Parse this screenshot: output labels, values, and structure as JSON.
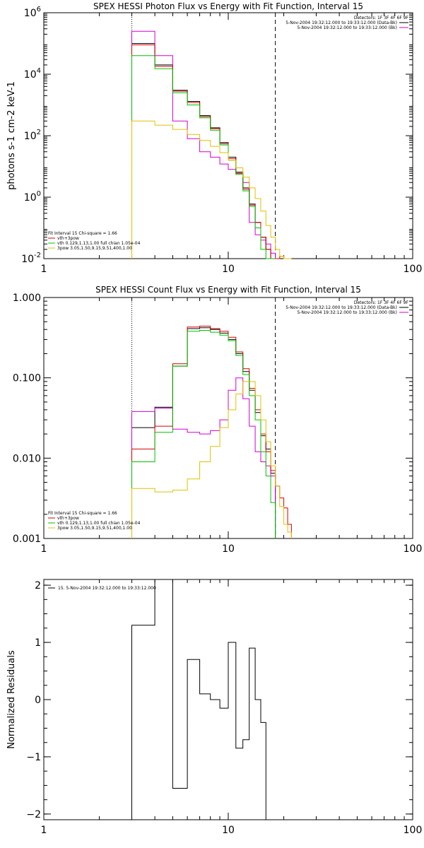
{
  "colors": {
    "black": "#000000",
    "red": "#d40000",
    "magenta": "#d000d0",
    "green": "#00c000",
    "gold": "#e0c000",
    "background": "#ffffff"
  },
  "chart_data": [
    {
      "type": "line",
      "title": "SPEX HESSI Photon Flux vs Energy with Fit Function, Interval 15",
      "xlabel": "",
      "ylabel": "photons s-1 cm-2 keV-1",
      "xscale": "log",
      "yscale": "log",
      "xlim": [
        1,
        100
      ],
      "ylim": [
        0.01,
        1000000
      ],
      "xticks": [
        "1",
        "10",
        "100"
      ],
      "yticks": [
        {
          "value": 0.01,
          "base": "10",
          "exp": "-2"
        },
        {
          "value": 1,
          "base": "10",
          "exp": "0"
        },
        {
          "value": 100,
          "base": "10",
          "exp": "2"
        },
        {
          "value": 10000,
          "base": "10",
          "exp": "4"
        },
        {
          "value": 1000000,
          "base": "10",
          "exp": "6"
        }
      ],
      "vlines": [
        {
          "x": 3,
          "style": "dotted"
        },
        {
          "x": 18,
          "style": "dashed"
        }
      ],
      "legend_top": [
        "Detectors: 1F 3F 4F 6F 9F",
        "5-Nov-2004 19:32:12.000 to 19:33:12.000 (Data-Bk)",
        "5-Nov-2004 19:32:12.000 to 19:33:12.000 (Bk)"
      ],
      "legend_bottom": [
        "Fit Interval 15   Chi-square = 1.66",
        "vth+3pow",
        "vth 0.129,1.13,1.00  full chian 1.05e-04",
        "3pow 3.05,1.50,9.15,9.51,400,1.00"
      ],
      "series": [
        {
          "name": "5-Nov-2004 19:32:12.000 to 19:33:12.000 (Data-Bk)",
          "color": "black",
          "edges": [
            3,
            4,
            5,
            6,
            7,
            8,
            9,
            10,
            11,
            12,
            13,
            14,
            15,
            16,
            17,
            18
          ],
          "values": [
            100000,
            20000,
            3000,
            1300,
            450,
            180,
            60,
            20,
            6.5,
            2.0,
            0.6,
            0.15,
            0.05,
            0.02,
            0.009
          ]
        },
        {
          "name": "5-Nov-2004 19:32:12.000 to 19:33:12.000 (Bk)",
          "color": "magenta",
          "edges": [
            3,
            4,
            5,
            6,
            7,
            8,
            9,
            10,
            11,
            12,
            13,
            14,
            15,
            16,
            17,
            18
          ],
          "values": [
            250000,
            40000,
            300,
            80,
            30,
            20,
            12,
            8,
            6,
            3,
            0.15,
            0.06,
            0.04,
            0.03,
            0.015
          ]
        },
        {
          "name": "vth+3pow",
          "color": "red",
          "edges": [
            3,
            4,
            5,
            6,
            7,
            8,
            9,
            10,
            11,
            12,
            13,
            14,
            15,
            16,
            17,
            18,
            19,
            20,
            21,
            22
          ],
          "values": [
            90000,
            18000,
            2800,
            1200,
            420,
            170,
            55,
            18,
            6,
            1.8,
            0.55,
            0.15,
            0.05,
            0.02,
            0.01,
            0.009,
            0.012,
            0.01,
            0.01
          ]
        },
        {
          "name": "vth 0.129,1.13,1.00  full chian 1.05e-04",
          "color": "green",
          "edges": [
            3,
            4,
            5,
            6,
            7,
            8,
            9,
            10,
            11,
            12,
            13,
            14,
            15,
            16,
            17,
            18
          ],
          "values": [
            40000,
            15000,
            2500,
            1000,
            380,
            150,
            50,
            16,
            5.5,
            1.6,
            0.5,
            0.1,
            0.02,
            0.005,
            0.005
          ]
        },
        {
          "name": "3pow 3.05,1.50,9.15,9.51,400,1.00",
          "color": "gold",
          "edges": [
            3,
            4,
            5,
            6,
            7,
            8,
            9,
            10,
            11,
            12,
            13,
            14,
            15,
            16,
            17,
            18,
            19,
            20,
            21,
            22
          ],
          "values": [
            300,
            220,
            160,
            110,
            70,
            45,
            28,
            16,
            9,
            4.5,
            2,
            0.9,
            0.35,
            0.12,
            0.05,
            0.02,
            0.012,
            0.01,
            0.01
          ]
        }
      ]
    },
    {
      "type": "line",
      "title": "SPEX HESSI Count Flux vs Energy with Fit Function, Interval 15",
      "xlabel": "",
      "ylabel": "",
      "xscale": "log",
      "yscale": "log",
      "xlim": [
        1,
        100
      ],
      "ylim": [
        0.001,
        1
      ],
      "xticks": [
        "1",
        "10",
        "100"
      ],
      "yticks": [
        {
          "value": 0.001,
          "label": "0.001"
        },
        {
          "value": 0.01,
          "label": "0.010"
        },
        {
          "value": 0.1,
          "label": "0.100"
        },
        {
          "value": 1,
          "label": "1.000"
        }
      ],
      "vlines": [
        {
          "x": 3,
          "style": "dotted"
        },
        {
          "x": 18,
          "style": "dashed"
        }
      ],
      "legend_top": [
        "Detectors: 1F 3F 4F 6F 9F",
        "5-Nov-2004 19:32:12.000 to 19:33:12.000 (Data-Bk)",
        "5-Nov-2004 19:32:12.000 to 19:33:12.000 (Bk)"
      ],
      "legend_bottom": [
        "Fit Interval 15   Chi-square = 1.66",
        "vth+3pow",
        "vth 0.129,1.13,1.00  full chian 1.05e-04",
        "3pow 3.05,1.50,9.15,9.51,400,1.00"
      ],
      "series": [
        {
          "name": "5-Nov-2004 19:32:12.000 to 19:33:12.000 (Data-Bk)",
          "color": "black",
          "edges": [
            3,
            4,
            5,
            6,
            7,
            8,
            9,
            10,
            11,
            12,
            13,
            14,
            15,
            16,
            17,
            18
          ],
          "values": [
            0.024,
            0.043,
            0.14,
            0.41,
            0.42,
            0.4,
            0.36,
            0.3,
            0.2,
            0.12,
            0.07,
            0.037,
            0.019,
            0.013,
            0.0065
          ]
        },
        {
          "name": "5-Nov-2004 19:32:12.000 to 19:33:12.000 (Bk)",
          "color": "magenta",
          "edges": [
            3,
            4,
            5,
            6,
            7,
            8,
            9,
            10,
            11,
            12,
            13,
            14,
            15,
            16,
            17,
            18
          ],
          "values": [
            0.038,
            0.042,
            0.023,
            0.021,
            0.02,
            0.022,
            0.03,
            0.07,
            0.1,
            0.055,
            0.025,
            0.012,
            0.009,
            0.008,
            0.006
          ]
        },
        {
          "name": "vth+3pow",
          "color": "red",
          "edges": [
            3,
            4,
            5,
            6,
            7,
            8,
            9,
            10,
            11,
            12,
            13,
            14,
            15,
            16,
            17,
            18,
            19,
            20,
            21,
            22
          ],
          "values": [
            0.013,
            0.025,
            0.15,
            0.43,
            0.44,
            0.41,
            0.38,
            0.32,
            0.21,
            0.13,
            0.074,
            0.04,
            0.02,
            0.012,
            0.007,
            0.0045,
            0.0032,
            0.0024,
            0.0015
          ]
        },
        {
          "name": "vth 0.129,1.13,1.00  full chian 1.05e-04",
          "color": "green",
          "edges": [
            3,
            4,
            5,
            6,
            7,
            8,
            9,
            10,
            11,
            12,
            13,
            14,
            15,
            16,
            17,
            18
          ],
          "values": [
            0.009,
            0.021,
            0.14,
            0.38,
            0.39,
            0.37,
            0.34,
            0.29,
            0.19,
            0.11,
            0.06,
            0.03,
            0.012,
            0.006,
            0.0028
          ]
        },
        {
          "name": "3pow 3.05,1.50,9.15,9.51,400,1.00",
          "color": "gold",
          "edges": [
            3,
            4,
            5,
            6,
            7,
            8,
            9,
            10,
            11,
            12,
            13,
            14,
            15,
            16,
            17,
            18,
            19,
            20,
            21,
            22
          ],
          "values": [
            0.0042,
            0.0038,
            0.004,
            0.0055,
            0.009,
            0.014,
            0.024,
            0.04,
            0.063,
            0.09,
            0.09,
            0.06,
            0.03,
            0.016,
            0.008,
            0.0045,
            0.0025,
            0.0015,
            0.0012
          ]
        }
      ]
    },
    {
      "type": "line",
      "title": "",
      "xlabel": "",
      "ylabel": "Normalized Residuals",
      "xscale": "log",
      "yscale": "linear",
      "xlim": [
        1,
        100
      ],
      "ylim": [
        -2.1,
        2.1
      ],
      "xticks": [
        "1",
        "10",
        "100"
      ],
      "yticks": [
        {
          "value": -2,
          "label": "−2"
        },
        {
          "value": -1,
          "label": "−1"
        },
        {
          "value": 0,
          "label": "0"
        },
        {
          "value": 1,
          "label": "1"
        },
        {
          "value": 2,
          "label": "2"
        }
      ],
      "legend_top": [
        "15.  5-Nov-2004 19:32:12.000 to 19:33:12.000"
      ],
      "series": [
        {
          "name": "15.  5-Nov-2004 19:32:12.000 to 19:33:12.000",
          "color": "black",
          "edges": [
            3,
            4,
            5,
            6,
            7,
            8,
            9,
            10,
            11,
            12,
            13,
            14,
            15,
            16,
            17,
            18
          ],
          "values": [
            1.3,
            2.1,
            -1.55,
            0.7,
            0.1,
            0.0,
            -0.15,
            1.0,
            -0.85,
            -0.7,
            0.9,
            0.0,
            -0.4,
            -2.1,
            -2.1
          ]
        }
      ]
    }
  ]
}
